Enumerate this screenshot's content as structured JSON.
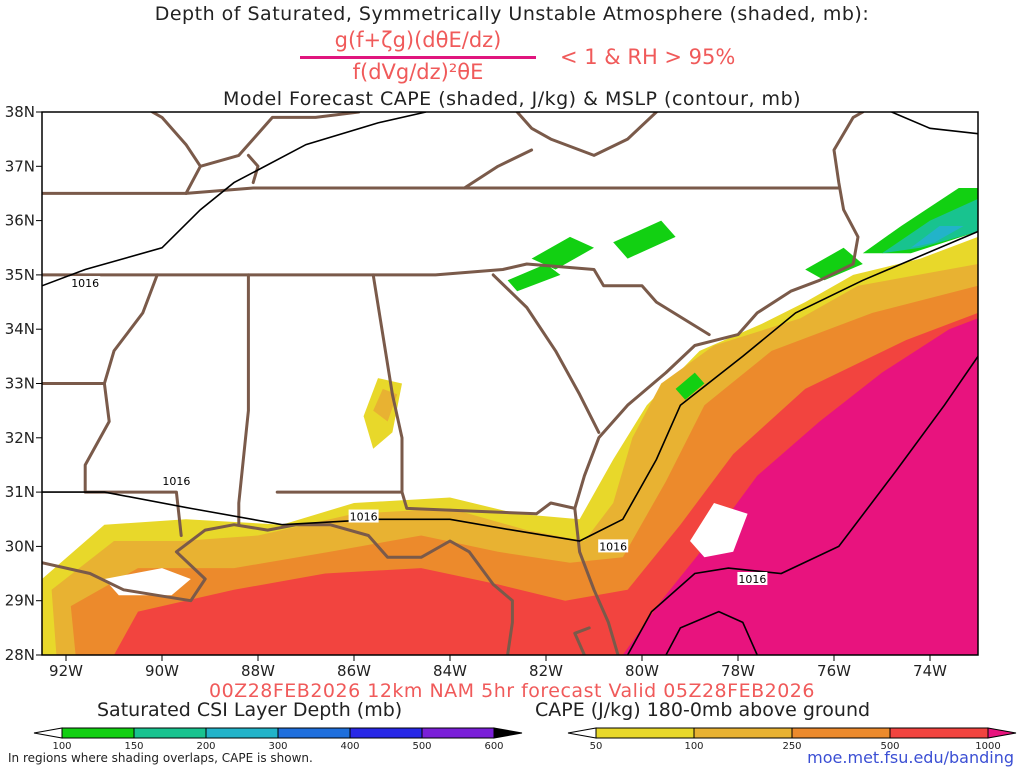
{
  "header": {
    "title_line1": "Depth of Saturated, Symmetrically Unstable Atmosphere (shaded, mb):",
    "formula_numerator": "g(f+ζg)(dθE/dz)",
    "formula_denominator": "f(dVg/dz)²θE",
    "formula_condition": "< 1 & RH > 95%",
    "title_line2": "Model Forecast CAPE (shaded, J/kg) & MSLP (contour, mb)"
  },
  "footer": {
    "run_info": "00Z28FEB2026 12km NAM 5hr forecast Valid 05Z28FEB2026",
    "csi_colorbar_title": "Saturated CSI Layer Depth (mb)",
    "cape_colorbar_title": "CAPE (J/kg) 180-0mb above ground",
    "footnote": "In regions where shading overlaps, CAPE is shown.",
    "credit": "moe.met.fsu.edu/banding"
  },
  "colors": {
    "state_borders": "#7a5a4a",
    "pressure_contour": "#000000",
    "title_accent": "#f05a5a",
    "formula_bar": "#e0157e",
    "credit_link": "#3b4fd4"
  },
  "chart_data": {
    "type": "heatmap",
    "map_extent": {
      "lon": [
        -92.5,
        -73.0
      ],
      "lat": [
        28.0,
        38.0
      ]
    },
    "x_ticks": [
      "92W",
      "90W",
      "88W",
      "86W",
      "84W",
      "82W",
      "80W",
      "78W",
      "76W",
      "74W"
    ],
    "x_tick_values": [
      -92,
      -90,
      -88,
      -86,
      -84,
      -82,
      -80,
      -78,
      -76,
      -74
    ],
    "y_ticks": [
      "28N",
      "29N",
      "30N",
      "31N",
      "32N",
      "33N",
      "34N",
      "35N",
      "36N",
      "37N",
      "38N"
    ],
    "y_tick_values": [
      28,
      29,
      30,
      31,
      32,
      33,
      34,
      35,
      36,
      37,
      38
    ],
    "csi_colorbar": {
      "labels": [
        "100",
        "150",
        "200",
        "300",
        "400",
        "500",
        "600"
      ],
      "colors": [
        "#ffffff",
        "#12d012",
        "#18c38f",
        "#22b3c9",
        "#1f6fdc",
        "#2828e6",
        "#7a1fd8",
        "#000000"
      ]
    },
    "cape_colorbar": {
      "labels": [
        "50",
        "100",
        "250",
        "500",
        "1000"
      ],
      "colors": [
        "#ffffff",
        "#e8d82a",
        "#e8b232",
        "#ec8a2c",
        "#f2443f",
        "#e8137e"
      ]
    },
    "pressure_contours": [
      {
        "level": 1016,
        "label": "1016"
      }
    ]
  }
}
